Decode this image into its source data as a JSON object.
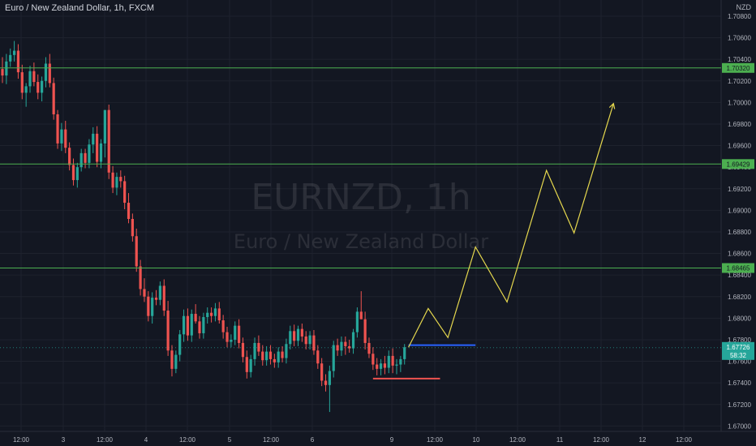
{
  "header": {
    "symbol_line": "Euro / New Zealand Dollar, 1h, FXCM",
    "currency": "NZD"
  },
  "watermark": {
    "ticker": "EURNZD, 1h",
    "name": "Euro / New Zealand Dollar"
  },
  "colors": {
    "background": "#131722",
    "grid": "#1e222d",
    "up_candle": "#26a69a",
    "down_candle": "#ef5350",
    "level_line": "#4caf50",
    "projection": "#e6d84e",
    "resistance_marker": "#2962ff",
    "support_marker": "#ef5350",
    "current_price": "#26a69a",
    "axis_text": "#b2b5be"
  },
  "chart_data": {
    "type": "candlestick",
    "ylim": [
      1.6695,
      1.7095
    ],
    "y_ticks": [
      "1.67000",
      "1.67200",
      "1.67400",
      "1.67600",
      "1.67800",
      "1.68000",
      "1.68200",
      "1.68400",
      "1.68600",
      "1.68800",
      "1.69000",
      "1.69200",
      "1.69400",
      "1.69600",
      "1.69800",
      "1.70000",
      "1.70200",
      "1.70400",
      "1.70600",
      "1.70800"
    ],
    "x_ticks": [
      "12:00",
      "3",
      "12:00",
      "4",
      "12:00",
      "5",
      "12:00",
      "6",
      "9",
      "12:00",
      "10",
      "12:00",
      "11",
      "12:00",
      "12",
      "12:00"
    ],
    "horizontal_levels": [
      {
        "price": 1.7032,
        "label": "1.70320"
      },
      {
        "price": 1.69429,
        "label": "1.69429"
      },
      {
        "price": 1.68465,
        "label": "1.68465"
      }
    ],
    "current_price": {
      "price": 1.67726,
      "label": "1.67726",
      "countdown": "58:32"
    },
    "resistance_marker": {
      "price": 1.6775,
      "from_bar": 103,
      "to_bar": 120
    },
    "support_marker": {
      "price": 1.6744,
      "from_bar": 94,
      "to_bar": 111
    },
    "projection_path": [
      {
        "bar": 103,
        "price": 1.6773
      },
      {
        "bar": 108,
        "price": 1.6809
      },
      {
        "bar": 113,
        "price": 1.6782
      },
      {
        "bar": 120,
        "price": 1.6866
      },
      {
        "bar": 128,
        "price": 1.6815
      },
      {
        "bar": 138,
        "price": 1.6937
      },
      {
        "bar": 145,
        "price": 1.6879
      },
      {
        "bar": 155,
        "price": 1.6999
      }
    ],
    "candles": [
      [
        1.7031,
        1.7042,
        1.7018,
        1.7025
      ],
      [
        1.7025,
        1.7045,
        1.7017,
        1.7038
      ],
      [
        1.7038,
        1.705,
        1.7033,
        1.7044
      ],
      [
        1.7044,
        1.7057,
        1.7038,
        1.7048
      ],
      [
        1.7048,
        1.7054,
        1.7022,
        1.7028
      ],
      [
        1.7028,
        1.7035,
        1.7003,
        1.7009
      ],
      [
        1.7009,
        1.7018,
        1.6996,
        1.7015
      ],
      [
        1.7015,
        1.7034,
        1.7009,
        1.7029
      ],
      [
        1.7029,
        1.7037,
        1.7015,
        1.7019
      ],
      [
        1.7019,
        1.7026,
        1.7003,
        1.7009
      ],
      [
        1.7009,
        1.7024,
        1.7001,
        1.702
      ],
      [
        1.702,
        1.7042,
        1.7014,
        1.7036
      ],
      [
        1.7036,
        1.7045,
        1.7014,
        1.7018
      ],
      [
        1.7018,
        1.7023,
        1.6984,
        1.6989
      ],
      [
        1.6989,
        1.6993,
        1.6957,
        1.6962
      ],
      [
        1.6962,
        1.6981,
        1.6955,
        1.6975
      ],
      [
        1.6975,
        1.6983,
        1.6953,
        1.6958
      ],
      [
        1.6958,
        1.6963,
        1.6937,
        1.6942
      ],
      [
        1.6942,
        1.6948,
        1.6923,
        1.6928
      ],
      [
        1.6928,
        1.6944,
        1.6921,
        1.694
      ],
      [
        1.694,
        1.6957,
        1.6936,
        1.6953
      ],
      [
        1.6953,
        1.6957,
        1.6939,
        1.6944
      ],
      [
        1.6944,
        1.6966,
        1.6939,
        1.6961
      ],
      [
        1.6961,
        1.6977,
        1.6953,
        1.6971
      ],
      [
        1.6971,
        1.6978,
        1.694,
        1.6945
      ],
      [
        1.6945,
        1.6966,
        1.6939,
        1.6962
      ],
      [
        1.6962,
        1.6993,
        1.6949,
        1.6993
      ],
      [
        1.6993,
        1.6998,
        1.6929,
        1.6935
      ],
      [
        1.6935,
        1.6941,
        1.6916,
        1.6921
      ],
      [
        1.6921,
        1.6935,
        1.6914,
        1.6931
      ],
      [
        1.6931,
        1.6937,
        1.6921,
        1.6927
      ],
      [
        1.6927,
        1.6932,
        1.6901,
        1.6907
      ],
      [
        1.6907,
        1.6916,
        1.6888,
        1.6892
      ],
      [
        1.6892,
        1.6897,
        1.6871,
        1.6876
      ],
      [
        1.6876,
        1.6883,
        1.6843,
        1.6848
      ],
      [
        1.6848,
        1.6854,
        1.6821,
        1.6827
      ],
      [
        1.6827,
        1.6837,
        1.6815,
        1.682
      ],
      [
        1.682,
        1.6825,
        1.6797,
        1.6802
      ],
      [
        1.6802,
        1.6824,
        1.6795,
        1.6819
      ],
      [
        1.6819,
        1.6826,
        1.6812,
        1.6817
      ],
      [
        1.6817,
        1.6834,
        1.6812,
        1.683
      ],
      [
        1.683,
        1.6836,
        1.6802,
        1.6807
      ],
      [
        1.6807,
        1.6816,
        1.6765,
        1.677
      ],
      [
        1.677,
        1.6775,
        1.6746,
        1.6753
      ],
      [
        1.6753,
        1.677,
        1.6749,
        1.6766
      ],
      [
        1.6766,
        1.6789,
        1.676,
        1.6785
      ],
      [
        1.6785,
        1.6808,
        1.6778,
        1.6802
      ],
      [
        1.6802,
        1.6809,
        1.6779,
        1.6784
      ],
      [
        1.6784,
        1.6808,
        1.6778,
        1.6804
      ],
      [
        1.6804,
        1.6813,
        1.6795,
        1.6797
      ],
      [
        1.6797,
        1.6802,
        1.6781,
        1.6786
      ],
      [
        1.6786,
        1.6805,
        1.6781,
        1.6801
      ],
      [
        1.6801,
        1.681,
        1.6795,
        1.6805
      ],
      [
        1.6805,
        1.681,
        1.6796,
        1.6802
      ],
      [
        1.6802,
        1.6814,
        1.6797,
        1.6809
      ],
      [
        1.6809,
        1.6815,
        1.6795,
        1.6798
      ],
      [
        1.6798,
        1.6803,
        1.6781,
        1.6787
      ],
      [
        1.6787,
        1.6792,
        1.6773,
        1.6778
      ],
      [
        1.6778,
        1.6785,
        1.6773,
        1.678
      ],
      [
        1.678,
        1.6797,
        1.6775,
        1.6793
      ],
      [
        1.6793,
        1.6799,
        1.6772,
        1.6777
      ],
      [
        1.6777,
        1.6782,
        1.6759,
        1.6764
      ],
      [
        1.6764,
        1.677,
        1.6744,
        1.675
      ],
      [
        1.675,
        1.6766,
        1.6745,
        1.6762
      ],
      [
        1.6762,
        1.6782,
        1.6756,
        1.6777
      ],
      [
        1.6777,
        1.6784,
        1.6765,
        1.6769
      ],
      [
        1.6769,
        1.6775,
        1.6756,
        1.6761
      ],
      [
        1.6761,
        1.6774,
        1.6756,
        1.6769
      ],
      [
        1.6769,
        1.6775,
        1.6757,
        1.6762
      ],
      [
        1.6762,
        1.6767,
        1.6754,
        1.6759
      ],
      [
        1.6759,
        1.6773,
        1.6754,
        1.6769
      ],
      [
        1.6769,
        1.6774,
        1.6759,
        1.6763
      ],
      [
        1.6763,
        1.6781,
        1.6758,
        1.6776
      ],
      [
        1.6776,
        1.6793,
        1.6771,
        1.6788
      ],
      [
        1.6788,
        1.6794,
        1.6774,
        1.6779
      ],
      [
        1.6779,
        1.6793,
        1.6774,
        1.679
      ],
      [
        1.679,
        1.6795,
        1.6778,
        1.6783
      ],
      [
        1.6783,
        1.6788,
        1.6771,
        1.6776
      ],
      [
        1.6776,
        1.6788,
        1.6771,
        1.6784
      ],
      [
        1.6784,
        1.6789,
        1.6766,
        1.677
      ],
      [
        1.677,
        1.6775,
        1.6753,
        1.6758
      ],
      [
        1.6758,
        1.6763,
        1.6737,
        1.6742
      ],
      [
        1.6742,
        1.6748,
        1.6732,
        1.6738
      ],
      [
        1.6738,
        1.6756,
        1.6713,
        1.6751
      ],
      [
        1.6751,
        1.6779,
        1.6745,
        1.6775
      ],
      [
        1.6775,
        1.6781,
        1.6765,
        1.677
      ],
      [
        1.677,
        1.6783,
        1.6765,
        1.6778
      ],
      [
        1.6778,
        1.6783,
        1.6766,
        1.6774
      ],
      [
        1.6774,
        1.678,
        1.6768,
        1.6772
      ],
      [
        1.6772,
        1.679,
        1.6767,
        1.6787
      ],
      [
        1.6787,
        1.681,
        1.6782,
        1.6806
      ],
      [
        1.6806,
        1.6825,
        1.6799,
        1.6799
      ],
      [
        1.6799,
        1.6806,
        1.6771,
        1.6777
      ],
      [
        1.6777,
        1.6782,
        1.6763,
        1.6767
      ],
      [
        1.6767,
        1.6773,
        1.6752,
        1.6757
      ],
      [
        1.6757,
        1.6763,
        1.6747,
        1.6753
      ],
      [
        1.6753,
        1.6762,
        1.6747,
        1.6758
      ],
      [
        1.6758,
        1.6765,
        1.6748,
        1.6754
      ],
      [
        1.6754,
        1.677,
        1.6749,
        1.6765
      ],
      [
        1.6765,
        1.6772,
        1.6749,
        1.6756
      ],
      [
        1.6756,
        1.6762,
        1.6748,
        1.6757
      ],
      [
        1.6757,
        1.6765,
        1.675,
        1.6762
      ],
      [
        1.6762,
        1.6776,
        1.6757,
        1.6773
      ]
    ]
  }
}
